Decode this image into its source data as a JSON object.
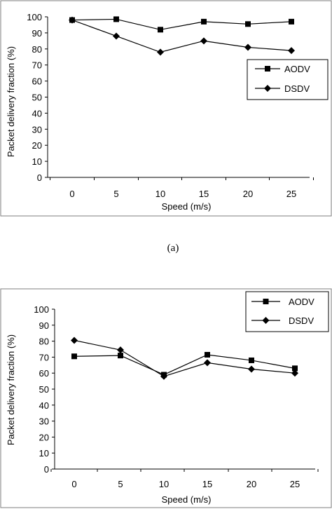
{
  "caption_a": "(a)",
  "colors": {
    "line": "#000000",
    "frame": "#7f7f7f",
    "background": "#ffffff"
  },
  "chart_data": [
    {
      "type": "line",
      "title": "",
      "xlabel": "Speed (m/s)",
      "ylabel": "Packet delivery fraction (%)",
      "categories": [
        "0",
        "5",
        "10",
        "15",
        "20",
        "25"
      ],
      "x": [
        0,
        5,
        10,
        15,
        20,
        25
      ],
      "ylim": [
        0,
        100
      ],
      "yticks": [
        "0",
        "10",
        "20",
        "30",
        "40",
        "50",
        "60",
        "70",
        "80",
        "90",
        "100"
      ],
      "grid": false,
      "legend_position": "right",
      "series": [
        {
          "name": "AODV",
          "marker": "square",
          "values": [
            98,
            98.5,
            92,
            97,
            95.5,
            97
          ]
        },
        {
          "name": "DSDV",
          "marker": "diamond",
          "values": [
            98,
            88,
            78,
            85,
            81,
            79
          ]
        }
      ]
    },
    {
      "type": "line",
      "title": "",
      "xlabel": "Speed (m/s)",
      "ylabel": "Packet delivery fraction (%)",
      "categories": [
        "0",
        "5",
        "10",
        "15",
        "20",
        "25"
      ],
      "x": [
        0,
        5,
        10,
        15,
        20,
        25
      ],
      "ylim": [
        0,
        100
      ],
      "yticks": [
        "0",
        "10",
        "20",
        "30",
        "40",
        "50",
        "60",
        "70",
        "80",
        "90",
        "100"
      ],
      "grid": false,
      "legend_position": "top-right",
      "series": [
        {
          "name": "AODV",
          "marker": "square",
          "values": [
            70.5,
            71,
            59,
            71.5,
            68,
            63
          ]
        },
        {
          "name": "DSDV",
          "marker": "diamond",
          "values": [
            80.5,
            74.5,
            58,
            66.5,
            62.5,
            60
          ]
        }
      ]
    }
  ]
}
